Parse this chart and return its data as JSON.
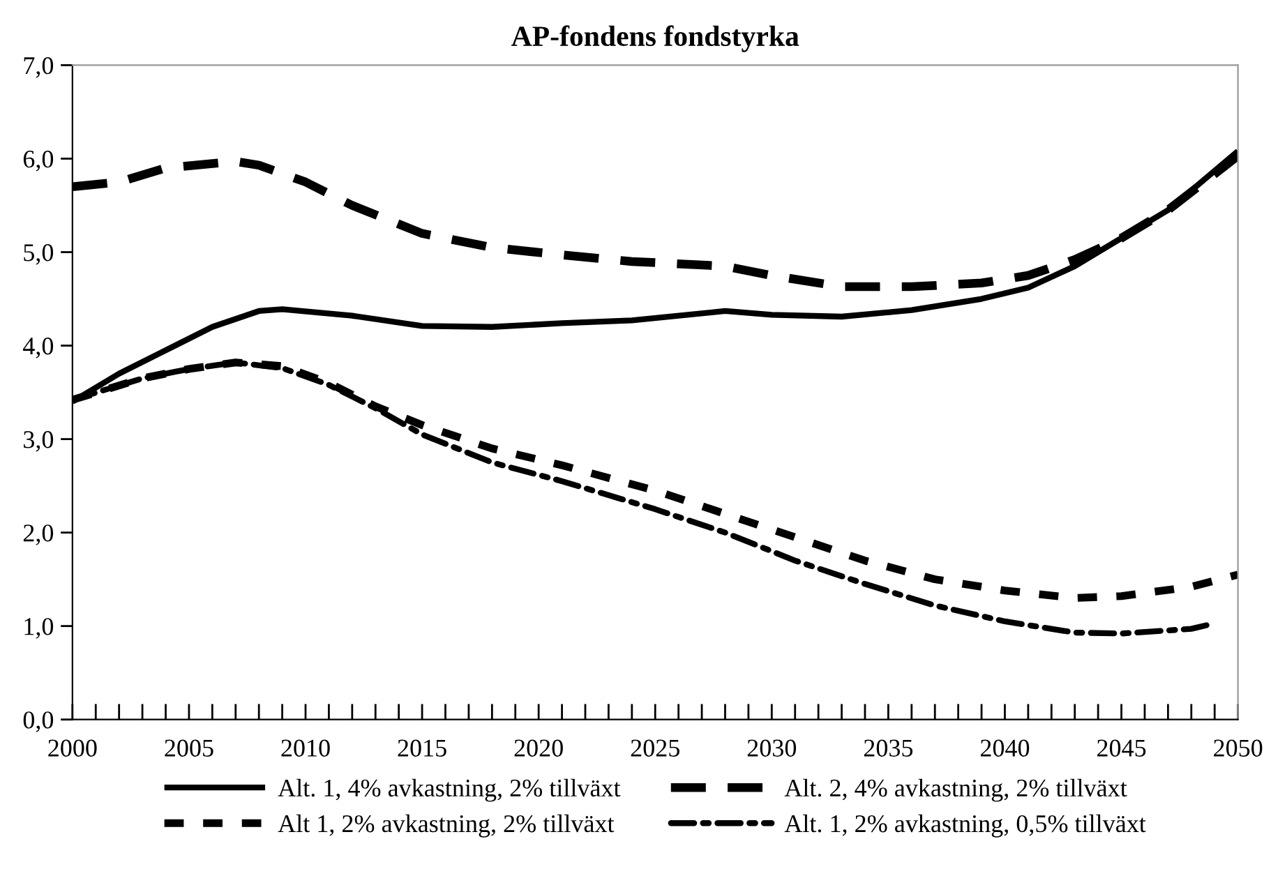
{
  "chart_data": {
    "type": "line",
    "title": "AP-fondens fondstyrka",
    "series": [
      {
        "name": "Alt. 1, 4% avkastning, 2% tillväxt",
        "color": "#000000",
        "line_style": "solid",
        "x": [
          2000,
          2002,
          2004,
          2006,
          2008,
          2009,
          2012,
          2015,
          2018,
          2021,
          2024,
          2028,
          2030,
          2033,
          2036,
          2039,
          2041,
          2043,
          2045,
          2047,
          2050
        ],
        "values": [
          3.4,
          3.7,
          3.95,
          4.2,
          4.37,
          4.39,
          4.32,
          4.21,
          4.2,
          4.24,
          4.27,
          4.37,
          4.33,
          4.31,
          4.38,
          4.5,
          4.62,
          4.85,
          5.15,
          5.45,
          6.08
        ]
      },
      {
        "name": "Alt. 2, 4% avkastning, 2% tillväxt",
        "color": "#000000",
        "line_style": "dashed",
        "x": [
          2000,
          2002,
          2004,
          2007,
          2008,
          2010,
          2012,
          2015,
          2018,
          2021,
          2024,
          2028,
          2030,
          2033,
          2036,
          2039,
          2041,
          2043,
          2045,
          2047,
          2050
        ],
        "values": [
          5.7,
          5.75,
          5.9,
          5.97,
          5.93,
          5.75,
          5.5,
          5.2,
          5.05,
          4.97,
          4.9,
          4.85,
          4.75,
          4.63,
          4.63,
          4.67,
          4.75,
          4.92,
          5.15,
          5.45,
          6.03
        ]
      },
      {
        "name": "Alt 1, 2% avkastning, 2% tillväxt",
        "color": "#000000",
        "line_style": "dotted",
        "x": [
          2000,
          2003,
          2005,
          2007,
          2009,
          2011,
          2013,
          2015,
          2018,
          2021,
          2025,
          2028,
          2031,
          2034,
          2037,
          2040,
          2043,
          2045,
          2048,
          2050
        ],
        "values": [
          3.42,
          3.65,
          3.75,
          3.82,
          3.78,
          3.6,
          3.35,
          3.15,
          2.9,
          2.72,
          2.45,
          2.2,
          1.95,
          1.7,
          1.5,
          1.38,
          1.3,
          1.32,
          1.42,
          1.55
        ]
      },
      {
        "name": "Alt. 1, 2% avkastning, 0,5% tillväxt",
        "color": "#000000",
        "line_style": "dashdot",
        "x": [
          2000,
          2003,
          2005,
          2007,
          2009,
          2011,
          2013,
          2015,
          2018,
          2021,
          2025,
          2028,
          2031,
          2034,
          2037,
          2040,
          2043,
          2045,
          2048,
          2049
        ],
        "values": [
          3.42,
          3.65,
          3.75,
          3.82,
          3.76,
          3.58,
          3.33,
          3.05,
          2.75,
          2.55,
          2.25,
          2.0,
          1.7,
          1.45,
          1.22,
          1.05,
          0.93,
          0.92,
          0.97,
          1.03
        ]
      }
    ],
    "xlim": [
      2000,
      2050
    ],
    "xticks": [
      {
        "value": 2000,
        "label": "2000"
      },
      {
        "value": 2001,
        "label": null
      },
      {
        "value": 2002,
        "label": null
      },
      {
        "value": 2003,
        "label": null
      },
      {
        "value": 2004,
        "label": null
      },
      {
        "value": 2005,
        "label": "2005"
      },
      {
        "value": 2006,
        "label": null
      },
      {
        "value": 2007,
        "label": null
      },
      {
        "value": 2008,
        "label": null
      },
      {
        "value": 2009,
        "label": null
      },
      {
        "value": 2010,
        "label": "2010"
      },
      {
        "value": 2011,
        "label": null
      },
      {
        "value": 2012,
        "label": null
      },
      {
        "value": 2013,
        "label": null
      },
      {
        "value": 2014,
        "label": null
      },
      {
        "value": 2015,
        "label": "2015"
      },
      {
        "value": 2016,
        "label": null
      },
      {
        "value": 2017,
        "label": null
      },
      {
        "value": 2018,
        "label": null
      },
      {
        "value": 2019,
        "label": null
      },
      {
        "value": 2020,
        "label": "2020"
      },
      {
        "value": 2021,
        "label": null
      },
      {
        "value": 2022,
        "label": null
      },
      {
        "value": 2023,
        "label": null
      },
      {
        "value": 2024,
        "label": null
      },
      {
        "value": 2025,
        "label": "2025"
      },
      {
        "value": 2026,
        "label": null
      },
      {
        "value": 2027,
        "label": null
      },
      {
        "value": 2028,
        "label": null
      },
      {
        "value": 2029,
        "label": null
      },
      {
        "value": 2030,
        "label": "2030"
      },
      {
        "value": 2031,
        "label": null
      },
      {
        "value": 2032,
        "label": null
      },
      {
        "value": 2033,
        "label": null
      },
      {
        "value": 2034,
        "label": null
      },
      {
        "value": 2035,
        "label": "2035"
      },
      {
        "value": 2036,
        "label": null
      },
      {
        "value": 2037,
        "label": null
      },
      {
        "value": 2038,
        "label": null
      },
      {
        "value": 2039,
        "label": null
      },
      {
        "value": 2040,
        "label": "2040"
      },
      {
        "value": 2041,
        "label": null
      },
      {
        "value": 2042,
        "label": null
      },
      {
        "value": 2043,
        "label": null
      },
      {
        "value": 2044,
        "label": null
      },
      {
        "value": 2045,
        "label": "2045"
      },
      {
        "value": 2046,
        "label": null
      },
      {
        "value": 2047,
        "label": null
      },
      {
        "value": 2048,
        "label": null
      },
      {
        "value": 2049,
        "label": null
      },
      {
        "value": 2050,
        "label": "2050"
      }
    ],
    "ylim": [
      0,
      7
    ],
    "yticks": [
      {
        "value": 0,
        "label": "0,0"
      },
      {
        "value": 1,
        "label": "1,0"
      },
      {
        "value": 2,
        "label": "2,0"
      },
      {
        "value": 3,
        "label": "3,0"
      },
      {
        "value": 4,
        "label": "4,0"
      },
      {
        "value": 5,
        "label": "5,0"
      },
      {
        "value": 6,
        "label": "6,0"
      },
      {
        "value": 7,
        "label": "7,0"
      }
    ],
    "grid": false,
    "legend": "bottom",
    "marker": "none"
  }
}
